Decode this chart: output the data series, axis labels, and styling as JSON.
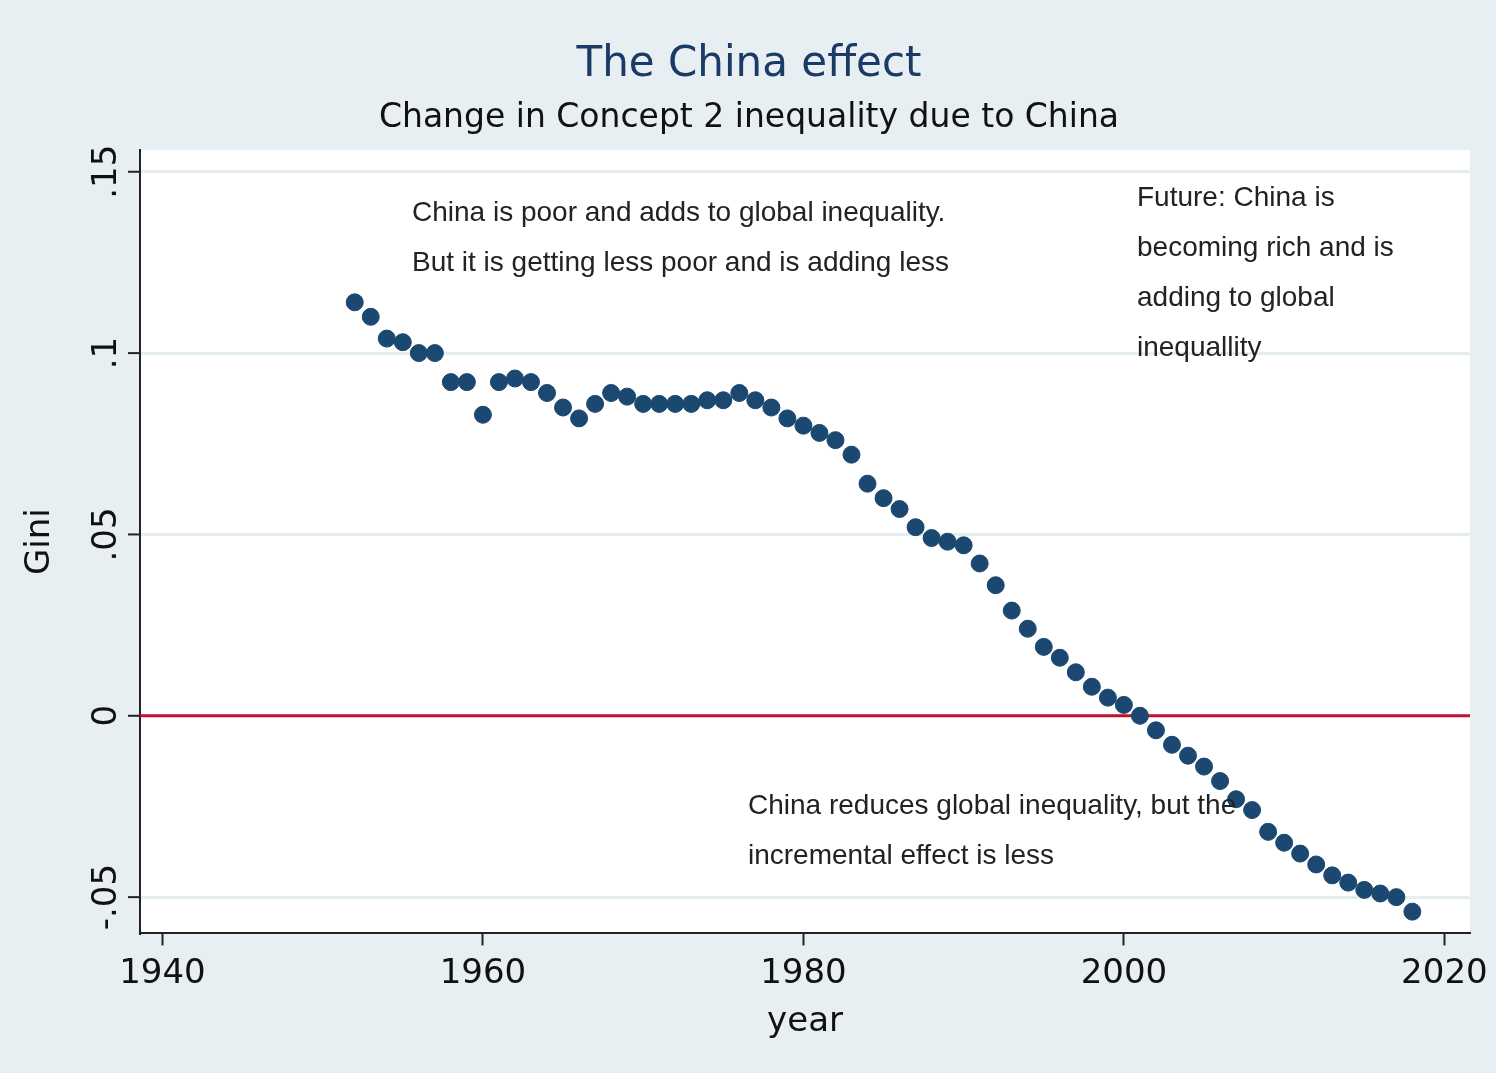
{
  "chart_data": {
    "type": "scatter",
    "title": "The China effect",
    "subtitle": "Change in Concept 2 inequality due to China",
    "xlabel": "year",
    "ylabel": "Gini",
    "x": [
      1952,
      1953,
      1954,
      1955,
      1956,
      1957,
      1958,
      1959,
      1960,
      1961,
      1962,
      1963,
      1964,
      1965,
      1966,
      1967,
      1968,
      1969,
      1970,
      1971,
      1972,
      1973,
      1974,
      1975,
      1976,
      1977,
      1978,
      1979,
      1980,
      1981,
      1982,
      1983,
      1984,
      1985,
      1986,
      1987,
      1988,
      1989,
      1990,
      1991,
      1992,
      1993,
      1994,
      1995,
      1996,
      1997,
      1998,
      1999,
      2000,
      2001,
      2002,
      2003,
      2004,
      2005,
      2006,
      2007,
      2008,
      2009,
      2010,
      2011,
      2012,
      2013,
      2014,
      2015,
      2016,
      2017,
      2018
    ],
    "series": [
      {
        "color": "#1b4870",
        "values": [
          0.114,
          0.11,
          0.104,
          0.103,
          0.1,
          0.1,
          0.092,
          0.092,
          0.083,
          0.092,
          0.093,
          0.092,
          0.089,
          0.085,
          0.082,
          0.086,
          0.089,
          0.088,
          0.086,
          0.086,
          0.086,
          0.086,
          0.087,
          0.087,
          0.089,
          0.087,
          0.085,
          0.082,
          0.08,
          0.078,
          0.076,
          0.072,
          0.064,
          0.06,
          0.057,
          0.052,
          0.049,
          0.048,
          0.047,
          0.042,
          0.036,
          0.029,
          0.024,
          0.019,
          0.016,
          0.012,
          0.008,
          0.005,
          0.003,
          0.0,
          -0.004,
          -0.008,
          -0.011,
          -0.014,
          -0.018,
          -0.023,
          -0.026,
          -0.032,
          -0.035,
          -0.038,
          -0.041,
          -0.044,
          -0.046,
          -0.048,
          -0.049,
          -0.05,
          -0.054
        ]
      }
    ],
    "xlim": [
      1938.6,
      2021.6
    ],
    "xticks": [
      1940,
      1960,
      1980,
      2000,
      2020
    ],
    "ylim": [
      -0.06,
      0.156
    ],
    "yticks": [
      {
        "value": -0.05,
        "label": "-.05"
      },
      {
        "value": 0,
        "label": "0"
      },
      {
        "value": 0.05,
        "label": ".05"
      },
      {
        "value": 0.1,
        "label": ".1"
      },
      {
        "value": 0.15,
        "label": ".15"
      }
    ],
    "grid": "y",
    "marker": "circle",
    "legend": false,
    "ref_lines": [
      {
        "axis": "y",
        "value": 0,
        "color": "#c8102e"
      }
    ],
    "annotations": [
      "China is poor and adds to global inequality. But it is getting less poor and is adding less",
      "Future: China is becoming rich and is adding to global inequallity",
      "China reduces global inequality, but the incremental effect is less"
    ]
  }
}
